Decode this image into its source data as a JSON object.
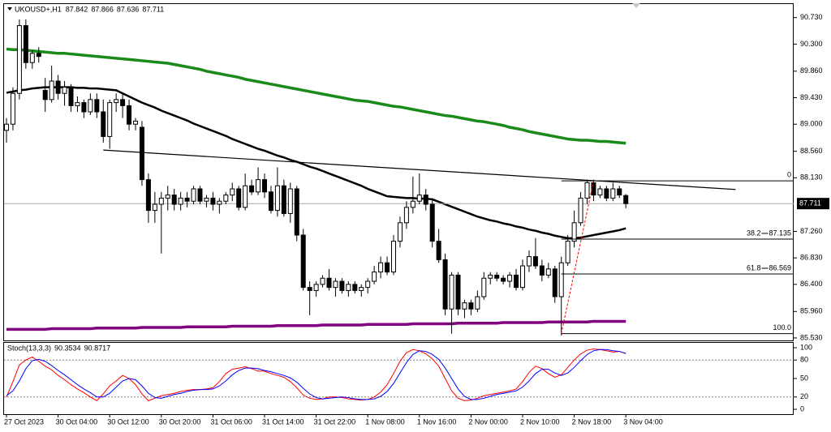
{
  "chart_data": [
    {
      "type": "candlestick",
      "title": "UKOUSD+,H1",
      "categories": [
        "27 Oct 2023",
        null,
        null,
        null,
        null,
        null,
        null,
        null,
        "30 Oct 04:00",
        null,
        null,
        null,
        null,
        null,
        null,
        null,
        "30 Oct 12:00",
        null,
        null,
        null,
        null,
        null,
        null,
        null,
        "30 Oct 20:00",
        null,
        null,
        null,
        null,
        null,
        null,
        null,
        "31 Oct 06:00",
        null,
        null,
        null,
        null,
        null,
        null,
        null,
        "31 Oct 14:00",
        null,
        null,
        null,
        null,
        null,
        null,
        null,
        "31 Oct 22:00",
        null,
        null,
        null,
        null,
        null,
        null,
        null,
        "1 Nov 08:00",
        null,
        null,
        null,
        null,
        null,
        null,
        null,
        "1 Nov 16:00",
        null,
        null,
        null,
        null,
        null,
        null,
        null,
        "2 Nov 00:00",
        null,
        null,
        null,
        null,
        null,
        null,
        null,
        "2 Nov 10:00",
        null,
        null,
        null,
        null,
        null,
        null,
        null,
        "2 Nov 18:00",
        null,
        null,
        null,
        null,
        null,
        null,
        null,
        "3 Nov 04:00"
      ],
      "open": [
        88.9,
        89.0,
        89.5,
        90.6,
        90.0,
        90.15,
        89.55,
        89.4,
        89.7,
        89.5,
        89.6,
        89.3,
        89.35,
        89.2,
        89.4,
        89.2,
        88.8,
        89.35,
        89.4,
        89.3,
        89.0,
        88.95,
        88.1,
        87.6,
        87.7,
        87.8,
        87.85,
        87.7,
        87.8,
        87.75,
        87.95,
        87.75,
        87.8,
        87.7,
        87.75,
        87.85,
        87.95,
        87.65,
        88.0,
        87.9,
        88.1,
        87.9,
        87.6,
        88.0,
        87.55,
        87.95,
        87.2,
        86.35,
        86.3,
        86.4,
        86.5,
        86.35,
        86.45,
        86.3,
        86.4,
        86.3,
        86.35,
        86.45,
        86.6,
        86.75,
        86.6,
        87.1,
        87.4,
        87.65,
        87.75,
        87.85,
        87.7,
        87.1,
        86.8,
        86.0,
        86.55,
        86.0,
        86.1,
        86.0,
        86.2,
        86.5,
        86.55,
        86.5,
        86.45,
        86.55,
        86.35,
        86.7,
        86.85,
        86.7,
        86.55,
        86.65,
        86.2,
        86.75,
        87.1,
        87.4,
        87.8,
        88.05,
        87.85,
        87.95,
        87.8,
        87.95,
        87.842
      ],
      "high": [
        89.1,
        89.6,
        90.7,
        90.7,
        90.2,
        90.25,
        89.75,
        89.95,
        89.8,
        89.7,
        89.65,
        89.45,
        89.4,
        89.5,
        89.5,
        89.4,
        89.4,
        89.5,
        89.5,
        89.4,
        89.1,
        89.05,
        88.2,
        87.9,
        87.9,
        88.0,
        87.95,
        87.9,
        87.9,
        88.0,
        88.0,
        87.85,
        87.9,
        87.8,
        87.9,
        88.05,
        88.0,
        88.2,
        88.1,
        88.3,
        88.2,
        88.0,
        88.3,
        88.1,
        88.05,
        88.0,
        87.3,
        86.45,
        86.45,
        86.55,
        86.65,
        86.5,
        86.5,
        86.45,
        86.45,
        86.4,
        86.5,
        86.7,
        86.85,
        86.85,
        87.2,
        87.5,
        87.75,
        88.15,
        88.2,
        87.95,
        87.8,
        87.3,
        86.9,
        86.6,
        86.6,
        86.15,
        86.15,
        86.3,
        86.6,
        86.6,
        86.6,
        86.55,
        86.6,
        86.65,
        86.8,
        86.95,
        87.15,
        86.8,
        86.75,
        86.7,
        86.85,
        87.2,
        87.6,
        87.9,
        88.1,
        88.1,
        88.0,
        88.0,
        88.05,
        88.0,
        87.866
      ],
      "low": [
        88.7,
        88.9,
        89.4,
        89.9,
        89.9,
        90.0,
        89.2,
        89.35,
        89.4,
        89.3,
        89.2,
        89.2,
        89.1,
        89.15,
        89.1,
        88.7,
        88.6,
        89.2,
        89.1,
        88.9,
        88.9,
        88.0,
        87.4,
        87.4,
        86.9,
        87.6,
        87.6,
        87.6,
        87.65,
        87.7,
        87.7,
        87.65,
        87.6,
        87.55,
        87.7,
        87.75,
        87.6,
        87.6,
        87.85,
        87.85,
        87.8,
        87.55,
        87.5,
        87.5,
        87.4,
        87.1,
        86.3,
        85.9,
        86.2,
        86.35,
        86.3,
        86.2,
        86.25,
        86.2,
        86.25,
        86.2,
        86.25,
        86.4,
        86.5,
        86.55,
        86.55,
        87.0,
        87.3,
        87.55,
        87.7,
        87.6,
        87.0,
        86.75,
        85.9,
        85.6,
        85.9,
        85.85,
        85.9,
        85.95,
        86.15,
        86.4,
        86.45,
        86.4,
        86.35,
        86.3,
        86.3,
        86.6,
        86.65,
        86.45,
        86.5,
        86.1,
        85.57,
        86.7,
        87.0,
        87.35,
        87.7,
        87.75,
        87.8,
        87.75,
        87.75,
        87.8,
        87.636
      ],
      "close": [
        89.0,
        89.5,
        90.6,
        90.0,
        90.15,
        90.1,
        89.4,
        89.7,
        89.5,
        89.6,
        89.3,
        89.35,
        89.2,
        89.4,
        89.2,
        88.8,
        89.35,
        89.4,
        89.3,
        89.0,
        89.05,
        88.1,
        87.6,
        87.7,
        87.8,
        87.85,
        87.7,
        87.8,
        87.75,
        87.95,
        87.75,
        87.8,
        87.7,
        87.75,
        87.85,
        87.95,
        87.65,
        88.0,
        87.9,
        88.1,
        87.9,
        87.6,
        88.0,
        87.55,
        87.95,
        87.2,
        86.35,
        86.3,
        86.4,
        86.5,
        86.35,
        86.45,
        86.3,
        86.4,
        86.3,
        86.35,
        86.45,
        86.6,
        86.75,
        86.6,
        87.1,
        87.4,
        87.65,
        87.75,
        87.85,
        87.7,
        87.1,
        86.8,
        86.0,
        86.55,
        86.0,
        86.1,
        86.0,
        86.2,
        86.5,
        86.55,
        86.5,
        86.45,
        86.55,
        86.35,
        86.7,
        86.85,
        86.7,
        86.55,
        86.65,
        86.2,
        86.75,
        87.1,
        87.4,
        87.8,
        88.05,
        87.85,
        87.95,
        87.8,
        87.95,
        87.85,
        87.711
      ],
      "up_color": "#ffffff",
      "down_color": "#000000",
      "wick_color": "#000000",
      "series": [
        {
          "color": "#1a8a1a",
          "values": [
            90.22,
            90.21,
            90.21,
            90.2,
            90.19,
            90.18,
            90.17,
            90.16,
            90.15,
            90.15,
            90.14,
            90.13,
            90.12,
            90.11,
            90.1,
            90.09,
            90.08,
            90.07,
            90.06,
            90.05,
            90.04,
            90.03,
            90.02,
            90.01,
            90.0,
            89.99,
            89.97,
            89.95,
            89.93,
            89.91,
            89.89,
            89.86,
            89.84,
            89.82,
            89.8,
            89.78,
            89.76,
            89.73,
            89.71,
            89.69,
            89.67,
            89.65,
            89.63,
            89.61,
            89.59,
            89.57,
            89.55,
            89.53,
            89.51,
            89.49,
            89.47,
            89.45,
            89.43,
            89.41,
            89.39,
            89.38,
            89.37,
            89.35,
            89.33,
            89.31,
            89.29,
            89.28,
            89.26,
            89.24,
            89.22,
            89.2,
            89.18,
            89.16,
            89.14,
            89.13,
            89.11,
            89.09,
            89.07,
            89.05,
            89.04,
            89.02,
            89.0,
            88.98,
            88.95,
            88.93,
            88.91,
            88.88,
            88.86,
            88.84,
            88.82,
            88.8,
            88.78,
            88.76,
            88.75,
            88.74,
            88.74,
            88.73,
            88.72,
            88.72,
            88.71,
            88.7,
            88.69
          ]
        },
        {
          "color": "#000000",
          "values": [
            89.51,
            89.53,
            89.55,
            89.56,
            89.58,
            89.59,
            89.6,
            89.6,
            89.6,
            89.6,
            89.6,
            89.59,
            89.59,
            89.58,
            89.58,
            89.57,
            89.56,
            89.55,
            89.5,
            89.45,
            89.4,
            89.35,
            89.31,
            89.27,
            89.22,
            89.18,
            89.14,
            89.1,
            89.06,
            89.01,
            88.97,
            88.93,
            88.89,
            88.85,
            88.81,
            88.76,
            88.72,
            88.68,
            88.64,
            88.6,
            88.57,
            88.53,
            88.49,
            88.46,
            88.42,
            88.39,
            88.35,
            88.31,
            88.28,
            88.24,
            88.2,
            88.16,
            88.12,
            88.08,
            88.04,
            88.0,
            87.95,
            87.91,
            87.87,
            87.83,
            87.82,
            87.81,
            87.8,
            87.8,
            87.79,
            87.79,
            87.78,
            87.74,
            87.7,
            87.66,
            87.62,
            87.58,
            87.54,
            87.5,
            87.47,
            87.44,
            87.42,
            87.39,
            87.37,
            87.34,
            87.32,
            87.29,
            87.27,
            87.24,
            87.22,
            87.19,
            87.17,
            87.15,
            87.15,
            87.16,
            87.18,
            87.2,
            87.22,
            87.24,
            87.26,
            87.28,
            87.31
          ]
        },
        {
          "color": "#800080",
          "values": [
            85.67,
            85.67,
            85.67,
            85.67,
            85.67,
            85.67,
            85.67,
            85.68,
            85.68,
            85.68,
            85.68,
            85.68,
            85.68,
            85.68,
            85.69,
            85.69,
            85.69,
            85.69,
            85.69,
            85.69,
            85.69,
            85.7,
            85.7,
            85.7,
            85.7,
            85.7,
            85.7,
            85.7,
            85.71,
            85.71,
            85.71,
            85.71,
            85.71,
            85.71,
            85.71,
            85.72,
            85.72,
            85.72,
            85.72,
            85.72,
            85.72,
            85.72,
            85.73,
            85.73,
            85.73,
            85.73,
            85.73,
            85.73,
            85.73,
            85.74,
            85.74,
            85.74,
            85.74,
            85.74,
            85.74,
            85.74,
            85.75,
            85.75,
            85.75,
            85.75,
            85.75,
            85.75,
            85.75,
            85.76,
            85.76,
            85.76,
            85.76,
            85.76,
            85.76,
            85.76,
            85.77,
            85.77,
            85.77,
            85.77,
            85.77,
            85.77,
            85.77,
            85.78,
            85.78,
            85.78,
            85.78,
            85.78,
            85.78,
            85.78,
            85.79,
            85.79,
            85.79,
            85.79,
            85.79,
            85.79,
            85.79,
            85.8,
            85.8,
            85.8,
            85.8,
            85.8,
            85.8
          ]
        }
      ],
      "ylim": [
        85.49,
        90.95
      ],
      "yticks": [
        {
          "value": 90.73,
          "label": "90.730"
        },
        {
          "value": 90.3,
          "label": "90.300"
        },
        {
          "value": 89.86,
          "label": "89.860"
        },
        {
          "value": 89.43,
          "label": "89.430"
        },
        {
          "value": 89,
          "label": "89.000"
        },
        {
          "value": 88.56,
          "label": "88.560"
        },
        {
          "value": 88.13,
          "label": "88.130"
        },
        {
          "value": 87.26,
          "label": "87.260"
        },
        {
          "value": 86.83,
          "label": "86.830"
        },
        {
          "value": 86.4,
          "label": "86.400"
        },
        {
          "value": 85.96,
          "label": "85.960"
        },
        {
          "value": 85.53,
          "label": "85.530"
        }
      ],
      "trendline": {
        "color": "#000000",
        "x": [
          15,
          113
        ],
        "values": [
          88.58,
          87.94
        ]
      },
      "fibonacci": {
        "color": "#000000",
        "trend_color": "#ff0000",
        "x": [
          86,
          91
        ],
        "levels": [
          {
            "label": "0",
            "price": 88.08,
            "show_price": false
          },
          {
            "label": "38.2",
            "price": 87.135,
            "show_price": true
          },
          {
            "label": "61.8",
            "price": 86.569,
            "show_price": true
          },
          {
            "label": "100.0",
            "price": 85.6,
            "show_price": false
          }
        ]
      }
    },
    {
      "type": "line",
      "title": "Stoch(13,3,3)",
      "series": [
        {
          "color": "#ff0000",
          "values": [
            20,
            45,
            72,
            80,
            85,
            78,
            70,
            64,
            55,
            48,
            40,
            33,
            27,
            20,
            14,
            25,
            38,
            46,
            55,
            50,
            40,
            25,
            14,
            18,
            22,
            24,
            26,
            29,
            31,
            32,
            32,
            33,
            35,
            45,
            58,
            65,
            67,
            69,
            66,
            62,
            62,
            58,
            55,
            52,
            45,
            35,
            23,
            18,
            16,
            17,
            20,
            20,
            19,
            17,
            16,
            15,
            16,
            20,
            28,
            40,
            58,
            78,
            92,
            97,
            95,
            90,
            82,
            70,
            50,
            30,
            18,
            14,
            15,
            18,
            22,
            24,
            26,
            28,
            30,
            33,
            45,
            60,
            70,
            66,
            58,
            52,
            56,
            68,
            80,
            90,
            96,
            98,
            97,
            95,
            93,
            94,
            90.3534
          ]
        },
        {
          "color": "#0000ff",
          "values": [
            22,
            30,
            46,
            66,
            79,
            81,
            78,
            71,
            63,
            56,
            48,
            40,
            33,
            27,
            20,
            20,
            26,
            36,
            46,
            50,
            48,
            38,
            26,
            19,
            18,
            21,
            24,
            26,
            29,
            31,
            32,
            32,
            33,
            38,
            46,
            56,
            63,
            67,
            67,
            66,
            63,
            61,
            58,
            55,
            51,
            44,
            34,
            25,
            19,
            17,
            18,
            19,
            20,
            19,
            17,
            16,
            16,
            17,
            21,
            29,
            42,
            59,
            76,
            89,
            95,
            94,
            89,
            81,
            67,
            50,
            33,
            21,
            16,
            16,
            18,
            21,
            24,
            26,
            28,
            30,
            36,
            46,
            58,
            65,
            65,
            59,
            55,
            59,
            68,
            79,
            89,
            95,
            97,
            97,
            95,
            94,
            90.8717
          ]
        }
      ],
      "ylim": [
        0,
        100
      ],
      "yticks": [
        100,
        80,
        50,
        20,
        0
      ],
      "levels": [
        80,
        20
      ]
    }
  ]
}
